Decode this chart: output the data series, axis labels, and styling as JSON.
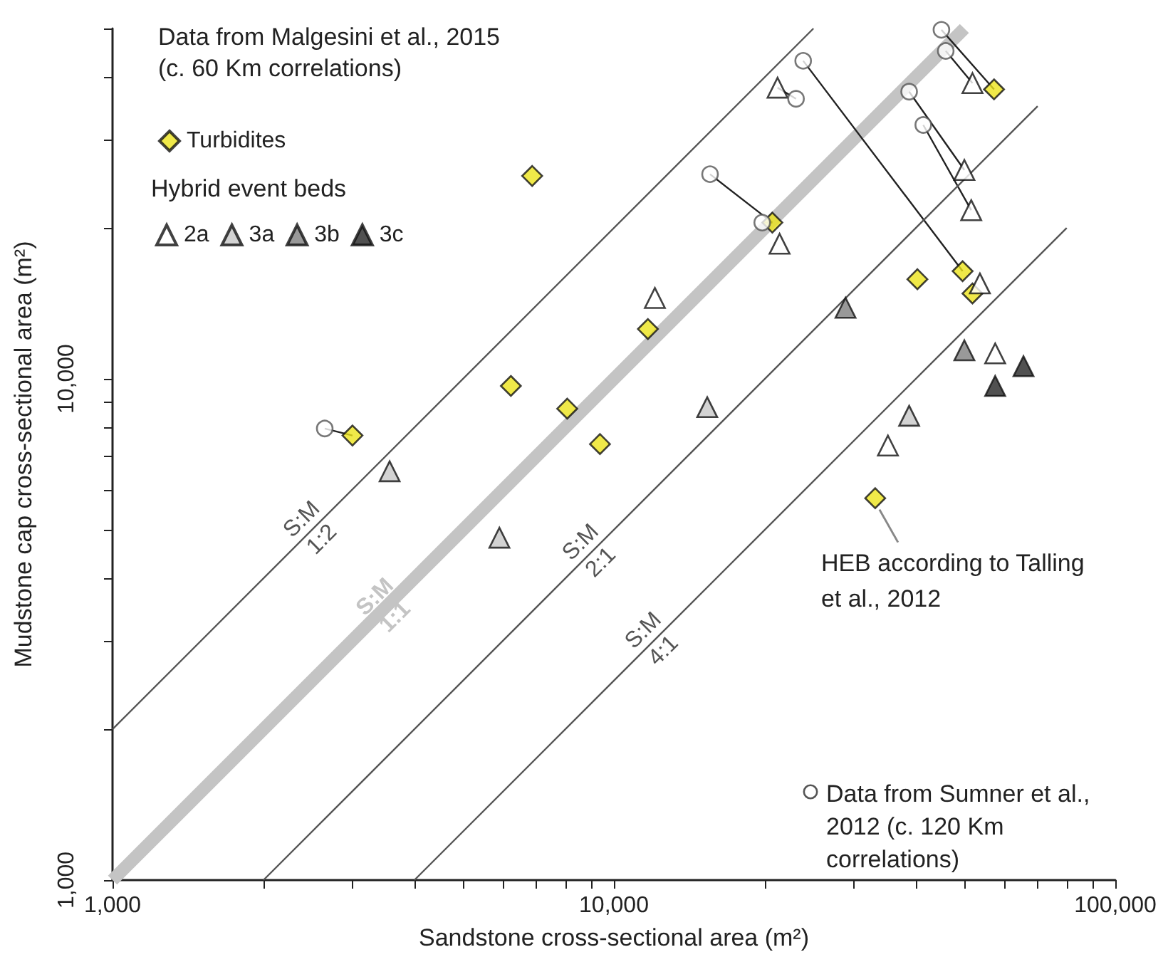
{
  "chart_data": {
    "type": "scatter",
    "legend_title": "Data from Malgesini et al., 2015 (c. 60 Km correlations)",
    "xlabel": "Sandstone cross-sectional area (m²)",
    "ylabel": "Mudstone cap cross-sectional area (m²)",
    "log": "xy",
    "grid": false,
    "legend": "top left",
    "xlim": [
      1000,
      100000
    ],
    "ylim": [
      1000,
      50000
    ],
    "xticks": [
      {
        "value": 1000,
        "label": "1,000"
      },
      {
        "value": 2000,
        "label": null
      },
      {
        "value": 3000,
        "label": null
      },
      {
        "value": 4000,
        "label": null
      },
      {
        "value": 5000,
        "label": null
      },
      {
        "value": 6000,
        "label": null
      },
      {
        "value": 7000,
        "label": null
      },
      {
        "value": 8000,
        "label": null
      },
      {
        "value": 9000,
        "label": null
      },
      {
        "value": 10000,
        "label": "10,000"
      },
      {
        "value": 20000,
        "label": null
      },
      {
        "value": 30000,
        "label": null
      },
      {
        "value": 40000,
        "label": null
      },
      {
        "value": 50000,
        "label": null
      },
      {
        "value": 60000,
        "label": null
      },
      {
        "value": 70000,
        "label": null
      },
      {
        "value": 80000,
        "label": null
      },
      {
        "value": 90000,
        "label": null
      },
      {
        "value": 100000,
        "label": "100,000"
      }
    ],
    "yticks": [
      {
        "value": 1000,
        "label": "1,000"
      },
      {
        "value": 2000,
        "label": null
      },
      {
        "value": 3000,
        "label": null
      },
      {
        "value": 4000,
        "label": null
      },
      {
        "value": 5000,
        "label": null
      },
      {
        "value": 6000,
        "label": null
      },
      {
        "value": 7000,
        "label": null
      },
      {
        "value": 8000,
        "label": null
      },
      {
        "value": 9000,
        "label": null
      },
      {
        "value": 10000,
        "label": "10,000"
      },
      {
        "value": 20000,
        "label": null
      },
      {
        "value": 30000,
        "label": null
      },
      {
        "value": 40000,
        "label": null
      },
      {
        "value": 50000,
        "label": null
      }
    ],
    "annotations": [
      "Hybrid event beds",
      {
        "text": "HEB according to Talling et al., 2012",
        "x": 33200,
        "y": 5780
      },
      "Data from Sumner et al., 2012 (c. 120 Km correlations)"
    ],
    "series": [
      {
        "name": "Turbidites",
        "type": "scatter",
        "marker": "diamond",
        "color": "#ece31c",
        "x": [
          3010,
          6230,
          6870,
          8070,
          9380,
          11690,
          20700,
          33200,
          40300,
          49600,
          51900,
          57300
        ],
        "values": [
          7710,
          9680,
          25400,
          8720,
          7410,
          12570,
          20500,
          5780,
          15800,
          16400,
          14800,
          37800
        ]
      },
      {
        "name": "2a",
        "type": "scatter",
        "marker": "triangle",
        "color": "#ffffff",
        "x": [
          21200,
          51900,
          50000,
          51600,
          21400,
          12070,
          53700,
          57600,
          35200
        ],
        "values": [
          38100,
          38900,
          26100,
          21700,
          18600,
          14500,
          15500,
          11240,
          7360
        ]
      },
      {
        "name": "3a",
        "type": "scatter",
        "marker": "triangle",
        "color": "#c8c8c8",
        "x": [
          3570,
          5910,
          15350,
          38800
        ],
        "values": [
          6540,
          4820,
          8780,
          8440
        ]
      },
      {
        "name": "3b",
        "type": "scatter",
        "marker": "triangle",
        "color": "#7f7f7f",
        "x": [
          28970,
          50000
        ],
        "values": [
          13860,
          11400
        ]
      },
      {
        "name": "3c",
        "type": "scatter",
        "marker": "triangle",
        "color": "#262626",
        "x": [
          57600,
          65600
        ],
        "values": [
          9680,
          10600
        ]
      },
      {
        "type": "scatter",
        "marker": "circle",
        "color": "#555555",
        "x": [
          2650,
          45000,
          45900,
          23850,
          23080,
          38800,
          41400,
          15550,
          19760
        ],
        "values": [
          7960,
          49700,
          45100,
          43100,
          36200,
          37400,
          32100,
          25600,
          20500
        ]
      },
      {
        "type": "line",
        "marker": "none",
        "color": "#222222",
        "x": [
          2650,
          3010,
          null,
          45000,
          57300,
          null,
          45900,
          51900,
          null,
          23850,
          49600,
          null,
          23080,
          21200,
          null,
          38800,
          50000,
          null,
          41400,
          51600,
          null,
          15550,
          20700,
          null,
          19760,
          20700
        ],
        "values": [
          7960,
          7710,
          null,
          49700,
          37800,
          null,
          45100,
          38900,
          null,
          43100,
          16400,
          null,
          36200,
          38100,
          null,
          37400,
          26100,
          null,
          32100,
          21700,
          null,
          25600,
          20500,
          null,
          20500,
          20500
        ]
      },
      {
        "name": "S:M 1:2",
        "type": "line",
        "marker": "none",
        "color": "#555555",
        "x": [
          1000,
          2500,
          25000
        ],
        "values": [
          2000,
          5000,
          50000
        ]
      },
      {
        "name": "S:M 1:1",
        "type": "line",
        "marker": "none",
        "color": "#c4c4c4",
        "x": [
          1000,
          3500,
          50000
        ],
        "values": [
          1000,
          3500,
          50000
        ]
      },
      {
        "name": "S:M 2:1",
        "type": "line",
        "marker": "none",
        "color": "#555555",
        "x": [
          2000,
          9000,
          70000
        ],
        "values": [
          1000,
          4500,
          35000
        ]
      },
      {
        "name": "S:M 4:1",
        "type": "line",
        "marker": "none",
        "color": "#555555",
        "x": [
          4000,
          12000,
          80000
        ],
        "values": [
          1000,
          3000,
          20000
        ]
      }
    ]
  }
}
